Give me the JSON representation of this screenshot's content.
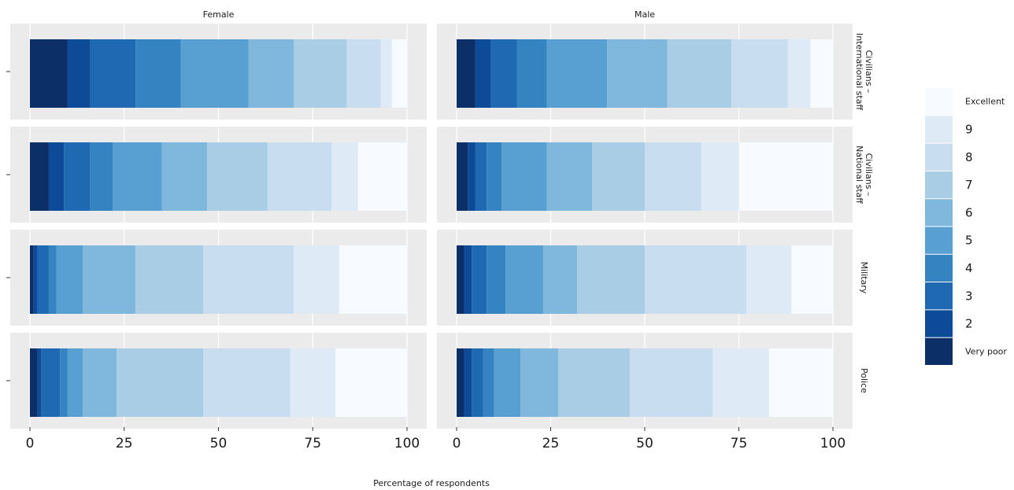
{
  "chart_data": {
    "type": "stacked-bar",
    "x_label": "Percentage of respondents",
    "panels": [
      "Female",
      "Male"
    ],
    "categories": [
      [
        "Civilians –",
        "International staff"
      ],
      [
        "Civilians –",
        "National staff"
      ],
      [
        "Military"
      ],
      [
        "Police"
      ]
    ],
    "xlim": [
      0,
      100
    ],
    "xticks": [
      0,
      25,
      50,
      75,
      100
    ],
    "grid": true,
    "series": [
      {
        "name": "Very poor",
        "color": "#0b2f66",
        "values": [
          [
            10,
            5,
            1,
            2
          ],
          [
            5,
            3,
            2,
            2
          ]
        ]
      },
      {
        "name": "2",
        "color": "#0d4a97",
        "values": [
          [
            6,
            4,
            1,
            1
          ],
          [
            4,
            2,
            2,
            2
          ]
        ]
      },
      {
        "name": "3",
        "color": "#1f69b2",
        "values": [
          [
            12,
            7,
            3,
            5
          ],
          [
            7,
            3,
            4,
            3
          ]
        ]
      },
      {
        "name": "4",
        "color": "#3584c1",
        "values": [
          [
            12,
            6,
            2,
            2
          ],
          [
            8,
            4,
            5,
            3
          ]
        ]
      },
      {
        "name": "5",
        "color": "#58a0d1",
        "values": [
          [
            18,
            13,
            7,
            4
          ],
          [
            16,
            12,
            10,
            7
          ]
        ]
      },
      {
        "name": "6",
        "color": "#80b7dc",
        "values": [
          [
            12,
            12,
            14,
            9
          ],
          [
            16,
            12,
            9,
            10
          ]
        ]
      },
      {
        "name": "7",
        "color": "#a8cde4",
        "values": [
          [
            14,
            16,
            18,
            23
          ],
          [
            17,
            14,
            18,
            19
          ]
        ]
      },
      {
        "name": "8",
        "color": "#c9ddf0",
        "values": [
          [
            9,
            17,
            24,
            23
          ],
          [
            15,
            15,
            27,
            22
          ]
        ]
      },
      {
        "name": "9",
        "color": "#deebf7",
        "values": [
          [
            3,
            7,
            12,
            12
          ],
          [
            6,
            10,
            12,
            15
          ]
        ]
      },
      {
        "name": "Excellent",
        "color": "#f7fbff",
        "values": [
          [
            4,
            13,
            18,
            19
          ],
          [
            6,
            25,
            11,
            17
          ]
        ]
      }
    ]
  }
}
